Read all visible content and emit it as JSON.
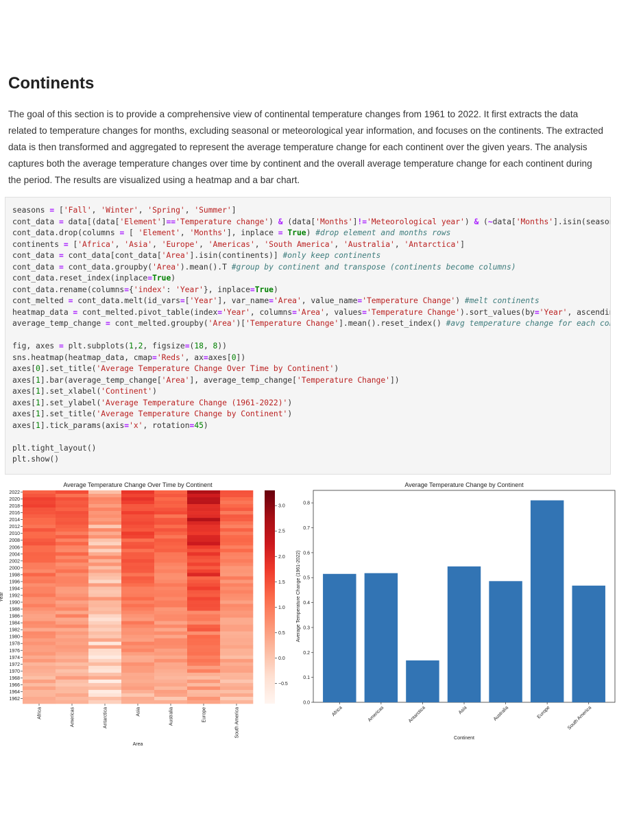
{
  "section": {
    "title": "Continents",
    "description": "The goal of this section is to provide a comprehensive view of continental temperature changes from 1961 to 2022. It first extracts the data related to temperature changes for months, excluding seasonal or meteorological year information, and focuses on the continents. The extracted data is then transformed and aggregated to represent the average temperature change for each continent over the given years. The analysis captures both the average temperature changes over time by continent and the overall average temperature change for each continent during the period. The results are visualized using a heatmap and a bar chart."
  },
  "code_lines": [
    "seasons = ['Fall', 'Winter', 'Spring', 'Summer']",
    "cont_data = data[(data['Element']=='Temperature change') & (data['Months']!='Meteorological year') & (~data['Months'].isin(seasons))]",
    "cont_data.drop(columns = [ 'Element', 'Months'], inplace = True) #drop element and months rows",
    "continents = ['Africa', 'Asia', 'Europe', 'Americas', 'South America', 'Australia', 'Antarctica']",
    "cont_data = cont_data[cont_data['Area'].isin(continents)] #only keep continents",
    "cont_data = cont_data.groupby('Area').mean().T #group by continent and transpose (continents become columns)",
    "cont_data.reset_index(inplace=True)",
    "cont_data.rename(columns={'index': 'Year'}, inplace=True)",
    "cont_melted = cont_data.melt(id_vars=['Year'], var_name='Area', value_name='Temperature Change') #melt continents",
    "heatmap_data = cont_melted.pivot_table(index='Year', columns='Area', values='Temperature Change').sort_values(by='Year', ascending=False)",
    "average_temp_change = cont_melted.groupby('Area')['Temperature Change'].mean().reset_index() #avg temperature change for each continent",
    "",
    "fig, axes = plt.subplots(1,2, figsize=(18, 8))",
    "sns.heatmap(heatmap_data, cmap='Reds', ax=axes[0])",
    "axes[0].set_title('Average Temperature Change Over Time by Continent')",
    "axes[1].bar(average_temp_change['Area'], average_temp_change['Temperature Change'])",
    "axes[1].set_xlabel('Continent')",
    "axes[1].set_ylabel('Average Temperature Change (1961-2022)')",
    "axes[1].set_title('Average Temperature Change by Continent')",
    "axes[1].tick_params(axis='x', rotation=45)",
    "",
    "plt.tight_layout()",
    "plt.show()"
  ],
  "colors": {
    "bar": "#3274b4",
    "code_bg": "#f5f5f5",
    "heat_low": "#fff5f0",
    "heat_high": "#67000d"
  },
  "chart_data": [
    {
      "type": "heatmap",
      "title": "Average Temperature Change Over Time by Continent",
      "xlabel": "Area",
      "ylabel": "Year",
      "categories": [
        "Africa",
        "Americas",
        "Antarctica",
        "Asia",
        "Australia",
        "Europe",
        "South America"
      ],
      "y_start": 2022,
      "y_end": 1961,
      "year_tick_labels": [
        "2022",
        "2020",
        "2018",
        "2016",
        "2014",
        "2012",
        "2010",
        "2008",
        "2006",
        "2004",
        "2002",
        "2000",
        "1998",
        "1996",
        "1994",
        "1992",
        "1990",
        "1988",
        "1986",
        "1984",
        "1982",
        "1980",
        "1978",
        "1976",
        "1974",
        "1972",
        "1970",
        "1968",
        "1966",
        "1964",
        "1962"
      ],
      "colorbar": {
        "min": -0.9,
        "max": 3.3,
        "ticks": [
          "3.0",
          "2.5",
          "2.0",
          "1.5",
          "1.0",
          "0.5",
          "0.0",
          "−0.5"
        ],
        "tick_values": [
          3.0,
          2.5,
          2.0,
          1.5,
          1.0,
          0.5,
          0.0,
          -0.5
        ],
        "cmap": "Reds"
      },
      "trend": {
        "Africa": [
          0.15,
          1.55
        ],
        "Americas": [
          0.15,
          1.35
        ],
        "Antarctica": [
          -0.25,
          0.55
        ],
        "Asia": [
          0.2,
          1.75
        ],
        "Australia": [
          0.2,
          1.45
        ],
        "Europe": [
          0.2,
          2.5
        ],
        "South America": [
          0.15,
          1.25
        ]
      }
    },
    {
      "type": "bar",
      "title": "Average Temperature Change by Continent",
      "xlabel": "Continent",
      "ylabel": "Average Temperature Change (1961-2022)",
      "categories": [
        "Africa",
        "Americas",
        "Antarctica",
        "Asia",
        "Australia",
        "Europe",
        "South America"
      ],
      "values": [
        0.515,
        0.518,
        0.168,
        0.545,
        0.486,
        0.81,
        0.468
      ],
      "ylim": [
        0,
        0.85
      ],
      "yticks": [
        "0.0",
        "0.1",
        "0.2",
        "0.3",
        "0.4",
        "0.5",
        "0.6",
        "0.7",
        "0.8"
      ],
      "ytick_values": [
        0.0,
        0.1,
        0.2,
        0.3,
        0.4,
        0.5,
        0.6,
        0.7,
        0.8
      ]
    }
  ]
}
